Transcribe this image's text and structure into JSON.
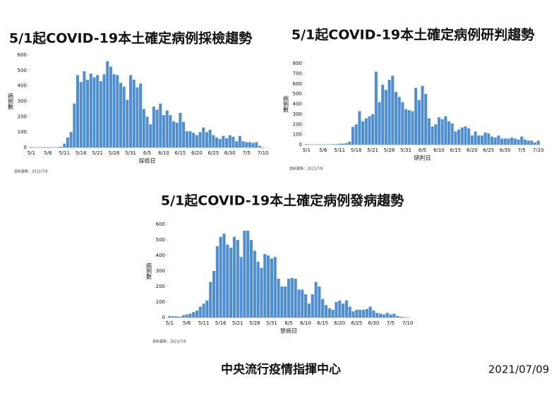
{
  "chart_data": [
    {
      "type": "bar",
      "title": "5/1起COVID-19本土確定病例採檢趨勢",
      "x_label": "採檢日",
      "y_label": "病例數",
      "note": "資料更新：2021/7/9",
      "color": "#4f8fd0",
      "ylim": [
        0,
        600
      ],
      "yticks": [
        0,
        100,
        200,
        300,
        400,
        500,
        600
      ],
      "categories": [
        "5/1",
        null,
        null,
        null,
        null,
        "5/6",
        null,
        null,
        null,
        null,
        "5/11",
        null,
        null,
        null,
        null,
        "5/16",
        null,
        null,
        null,
        null,
        "5/21",
        null,
        null,
        null,
        null,
        "5/26",
        null,
        null,
        null,
        null,
        "5/31",
        null,
        null,
        null,
        null,
        "6/5",
        null,
        null,
        null,
        null,
        "6/10",
        null,
        null,
        null,
        null,
        "6/15",
        null,
        null,
        null,
        null,
        "6/20",
        null,
        null,
        null,
        null,
        "6/25",
        null,
        null,
        null,
        null,
        "6/30",
        null,
        null,
        null,
        null,
        "7/5",
        null,
        null,
        null,
        null,
        "7/10"
      ],
      "values": [
        3,
        2,
        2,
        2,
        3,
        3,
        2,
        2,
        3,
        5,
        25,
        65,
        100,
        285,
        470,
        425,
        495,
        440,
        480,
        455,
        470,
        430,
        475,
        560,
        525,
        475,
        470,
        420,
        395,
        310,
        470,
        440,
        390,
        415,
        250,
        200,
        150,
        265,
        245,
        285,
        210,
        240,
        210,
        170,
        160,
        225,
        165,
        105,
        105,
        95,
        80,
        100,
        130,
        100,
        115,
        80,
        65,
        55,
        75,
        60,
        80,
        70,
        40,
        75,
        40,
        35,
        35,
        30,
        35,
        10,
        2
      ]
    },
    {
      "type": "bar",
      "title": "5/1起COVID-19本土確定病例研判趨勢",
      "x_label": "研判日",
      "y_label": "病例數",
      "note": "資料更新：2021/7/9",
      "color": "#4f8fd0",
      "ylim": [
        0,
        800
      ],
      "yticks": [
        0,
        100,
        200,
        300,
        400,
        500,
        600,
        700,
        800
      ],
      "categories": [
        "5/1",
        null,
        null,
        null,
        null,
        "5/6",
        null,
        null,
        null,
        null,
        "5/11",
        null,
        null,
        null,
        null,
        "5/16",
        null,
        null,
        null,
        null,
        "5/21",
        null,
        null,
        null,
        null,
        "5/26",
        null,
        null,
        null,
        null,
        "5/31",
        null,
        null,
        null,
        null,
        "6/5",
        null,
        null,
        null,
        null,
        "6/10",
        null,
        null,
        null,
        null,
        "6/15",
        null,
        null,
        null,
        null,
        "6/20",
        null,
        null,
        null,
        null,
        "6/25",
        null,
        null,
        null,
        null,
        "6/30",
        null,
        null,
        null,
        null,
        "7/5",
        null,
        null,
        null,
        null,
        "7/10"
      ],
      "values": [
        5,
        2,
        2,
        2,
        2,
        2,
        2,
        3,
        3,
        5,
        10,
        10,
        15,
        30,
        175,
        200,
        330,
        230,
        260,
        280,
        300,
        720,
        420,
        590,
        540,
        640,
        680,
        520,
        470,
        420,
        350,
        340,
        330,
        560,
        440,
        580,
        500,
        260,
        180,
        200,
        270,
        250,
        280,
        230,
        210,
        130,
        150,
        170,
        180,
        160,
        90,
        130,
        90,
        90,
        120,
        110,
        80,
        70,
        90,
        60,
        60,
        60,
        70,
        60,
        50,
        80,
        50,
        40,
        40,
        20,
        40
      ]
    },
    {
      "type": "bar",
      "title": "5/1起COVID-19本土確定病例發病趨勢",
      "x_label": "發病日",
      "y_label": "病例數",
      "note": "資料更新：2021/7/9",
      "color": "#4f8fd0",
      "ylim": [
        0,
        600
      ],
      "yticks": [
        0,
        100,
        200,
        300,
        400,
        500,
        600
      ],
      "categories": [
        "5/1",
        null,
        null,
        null,
        null,
        "5/6",
        null,
        null,
        null,
        null,
        "5/11",
        null,
        null,
        null,
        null,
        "5/16",
        null,
        null,
        null,
        null,
        "5/21",
        null,
        null,
        null,
        null,
        "5/26",
        null,
        null,
        null,
        null,
        "5/31",
        null,
        null,
        null,
        null,
        "6/5",
        null,
        null,
        null,
        null,
        "6/10",
        null,
        null,
        null,
        null,
        "6/15",
        null,
        null,
        null,
        null,
        "6/20",
        null,
        null,
        null,
        null,
        "6/25",
        null,
        null,
        null,
        null,
        "6/30",
        null,
        null,
        null,
        null,
        "7/5",
        null,
        null,
        null,
        null,
        "7/10"
      ],
      "values": [
        10,
        8,
        8,
        5,
        15,
        20,
        25,
        35,
        45,
        70,
        90,
        110,
        230,
        300,
        460,
        520,
        540,
        470,
        450,
        520,
        500,
        390,
        560,
        560,
        500,
        430,
        360,
        320,
        410,
        400,
        380,
        390,
        250,
        200,
        200,
        250,
        255,
        250,
        180,
        180,
        150,
        90,
        150,
        230,
        200,
        120,
        80,
        60,
        50,
        100,
        110,
        90,
        110,
        70,
        40,
        50,
        50,
        50,
        55,
        70,
        45,
        30,
        25,
        20,
        30,
        20,
        25,
        10,
        5,
        3,
        2
      ]
    }
  ],
  "footer": {
    "agency": "中央流行疫情指揮中心",
    "date": "2021/07/09"
  }
}
